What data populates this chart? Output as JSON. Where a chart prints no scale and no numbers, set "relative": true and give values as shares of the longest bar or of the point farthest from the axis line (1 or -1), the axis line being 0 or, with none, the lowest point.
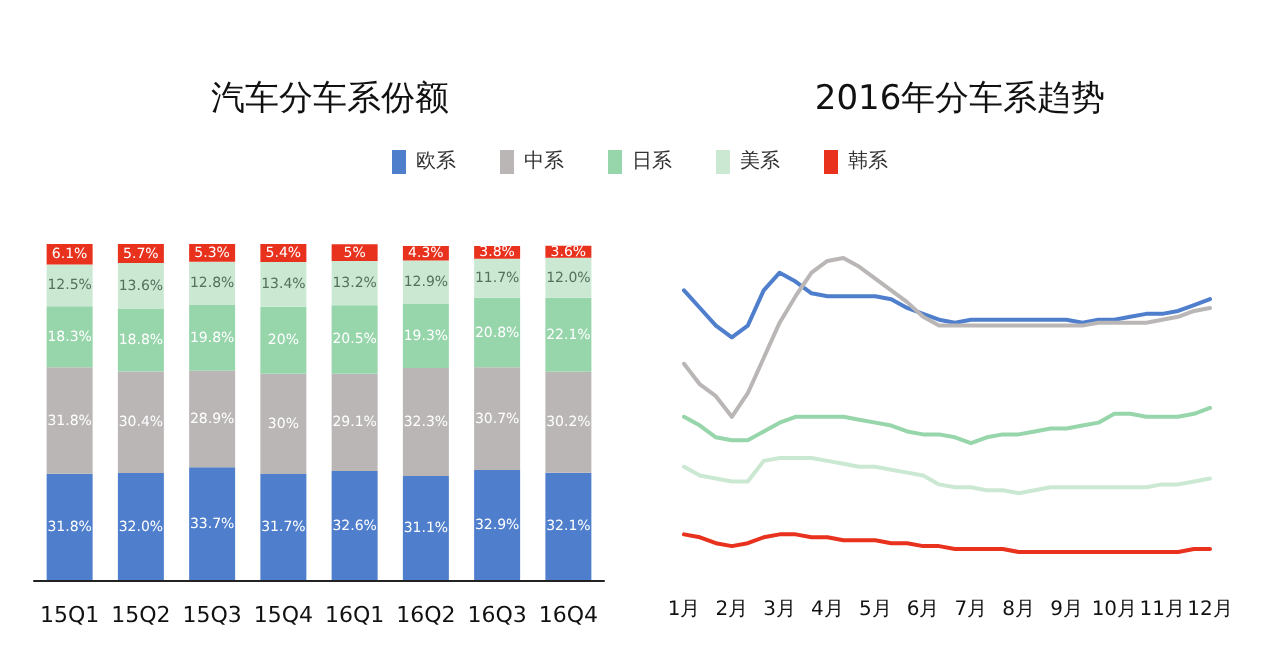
{
  "chart_data": [
    {
      "type": "bar",
      "title": "汽车分车系份额",
      "stacked": true,
      "legend": "top",
      "data_labels": false,
      "tick_labels": "x",
      "grid": false,
      "ylim": [
        0,
        100.5
      ],
      "categories": [
        "15Q1",
        "15Q2",
        "15Q3",
        "15Q4",
        "16Q1",
        "16Q2",
        "16Q3",
        "16Q4"
      ],
      "series": [
        {
          "name": "欧系",
          "color": "#4f7fcc",
          "values": [
            31.8,
            32.0,
            33.7,
            31.7,
            32.6,
            31.1,
            32.9,
            32.1
          ],
          "value_labels": [
            "31.8%",
            "32.0%",
            "33.7%",
            "31.7%",
            "32.6%",
            "31.1%",
            "32.9%",
            "32.1%"
          ]
        },
        {
          "name": "中系",
          "color": "#bab6b6",
          "values": [
            31.8,
            30.4,
            28.9,
            30,
            29.1,
            32.3,
            30.7,
            30.2
          ],
          "value_labels": [
            "31.8%",
            "30.4%",
            "28.9%",
            "30%",
            "29.1%",
            "32.3%",
            "30.7%",
            "30.2%"
          ]
        },
        {
          "name": "日系",
          "color": "#97d5ab",
          "values": [
            18.3,
            18.8,
            19.8,
            20,
            20.5,
            19.3,
            20.8,
            22.1
          ],
          "value_labels": [
            "18.3%",
            "18.8%",
            "19.8%",
            "20%",
            "20.5%",
            "19.3%",
            "20.8%",
            "22.1%"
          ]
        },
        {
          "name": "美系",
          "color": "#cbe8d3",
          "values": [
            12.5,
            13.6,
            12.8,
            13.4,
            13.2,
            12.9,
            11.7,
            12.0
          ],
          "value_labels": [
            "12.5%",
            "13.6%",
            "12.8%",
            "13.4%",
            "13.2%",
            "12.9%",
            "11.7%",
            "12.0%"
          ]
        },
        {
          "name": "韩系",
          "color": "#e8321e",
          "values": [
            6.1,
            5.7,
            5.3,
            5.4,
            5,
            4.3,
            3.8,
            3.6
          ],
          "value_labels": [
            "6.1%",
            "5.7%",
            "5.3%",
            "5.4%",
            "5%",
            "4.3%",
            "3.8%",
            "3.6%"
          ]
        }
      ]
    },
    {
      "type": "line",
      "title": "2016年分车系趋势",
      "relative": true,
      "legend": false,
      "grid": false,
      "marker": "none",
      "line_style": "solid",
      "categories": [
        "1月",
        null,
        null,
        "2月",
        null,
        null,
        "3月",
        null,
        null,
        "4月",
        null,
        null,
        "5月",
        null,
        null,
        "6月",
        null,
        null,
        "7月",
        null,
        null,
        "8月",
        null,
        null,
        "9月",
        null,
        null,
        "10月",
        null,
        null,
        "11月",
        null,
        null,
        "12月"
      ],
      "series": [
        {
          "color": "#4f7fcc",
          "values": [
            0.89,
            0.83,
            0.77,
            0.73,
            0.77,
            0.89,
            0.95,
            0.92,
            0.88,
            0.87,
            0.87,
            0.87,
            0.87,
            0.86,
            0.83,
            0.81,
            0.79,
            0.78,
            0.79,
            0.79,
            0.79,
            0.79,
            0.79,
            0.79,
            0.79,
            0.78,
            0.79,
            0.79,
            0.8,
            0.81,
            0.81,
            0.82,
            0.84,
            0.86
          ]
        },
        {
          "color": "#bab6b6",
          "values": [
            0.64,
            0.57,
            0.53,
            0.46,
            0.54,
            0.66,
            0.78,
            0.87,
            0.95,
            0.99,
            1,
            0.97,
            0.93,
            0.89,
            0.85,
            0.8,
            0.77,
            0.77,
            0.77,
            0.77,
            0.77,
            0.77,
            0.77,
            0.77,
            0.77,
            0.77,
            0.78,
            0.78,
            0.78,
            0.78,
            0.79,
            0.8,
            0.82,
            0.83
          ]
        },
        {
          "color": "#97d5ab",
          "values": [
            0.46,
            0.43,
            0.39,
            0.38,
            0.38,
            0.41,
            0.44,
            0.46,
            0.46,
            0.46,
            0.46,
            0.45,
            0.44,
            0.43,
            0.41,
            0.4,
            0.4,
            0.39,
            0.37,
            0.39,
            0.4,
            0.4,
            0.41,
            0.42,
            0.42,
            0.43,
            0.44,
            0.47,
            0.47,
            0.46,
            0.46,
            0.46,
            0.47,
            0.49
          ]
        },
        {
          "color": "#cbe8d3",
          "values": [
            0.29,
            0.26,
            0.25,
            0.24,
            0.24,
            0.31,
            0.32,
            0.32,
            0.32,
            0.31,
            0.3,
            0.29,
            0.29,
            0.28,
            0.27,
            0.26,
            0.23,
            0.22,
            0.22,
            0.21,
            0.21,
            0.2,
            0.21,
            0.22,
            0.22,
            0.22,
            0.22,
            0.22,
            0.22,
            0.22,
            0.23,
            0.23,
            0.24,
            0.25
          ]
        },
        {
          "color": "#e8321e",
          "values": [
            0.06,
            0.05,
            0.03,
            0.02,
            0.03,
            0.05,
            0.06,
            0.06,
            0.05,
            0.05,
            0.04,
            0.04,
            0.04,
            0.03,
            0.03,
            0.02,
            0.02,
            0.01,
            0.01,
            0.01,
            0.01,
            0,
            0,
            0,
            0,
            0,
            0,
            0,
            0,
            0,
            0,
            0,
            0.01,
            0.01
          ]
        }
      ]
    }
  ]
}
